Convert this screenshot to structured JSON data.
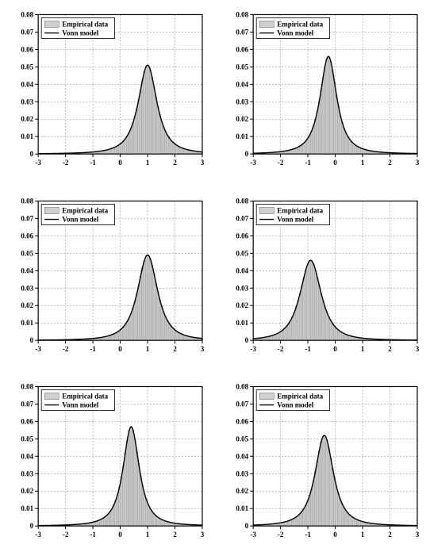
{
  "legend": {
    "empirical_label": "Empirical data",
    "model_label": "Vonn  model",
    "fill_color": "#d0d0d0",
    "line_color": "#000000",
    "font_size": 9,
    "font_family": "Times New Roman"
  },
  "axes": {
    "xlim": [
      -3,
      3
    ],
    "ylim": [
      0,
      0.08
    ],
    "xticks": [
      -3,
      -2,
      -1,
      0,
      1,
      2,
      3
    ],
    "yticks": [
      0,
      0.01,
      0.02,
      0.03,
      0.04,
      0.05,
      0.06,
      0.07,
      0.08
    ],
    "label_fontsize": 9,
    "grid_color": "#808080",
    "grid_dash": "2,2",
    "axis_color": "#000000",
    "background_color": "#ffffff",
    "border_width": 1.2
  },
  "bar_style": {
    "fill": "#c8c8c8",
    "stroke": "#909090",
    "stroke_width": 0.3,
    "bar_width": 0.07
  },
  "curve_style": {
    "stroke": "#000000",
    "stroke_width": 1.4
  },
  "panels": [
    {
      "mu": 1.0,
      "peak": 0.051,
      "width": 0.38,
      "tail": 1.6
    },
    {
      "mu": -0.25,
      "peak": 0.056,
      "width": 0.34,
      "tail": 1.6
    },
    {
      "mu": 1.0,
      "peak": 0.049,
      "width": 0.4,
      "tail": 1.8
    },
    {
      "mu": -0.9,
      "peak": 0.046,
      "width": 0.42,
      "tail": 1.9
    },
    {
      "mu": 0.4,
      "peak": 0.057,
      "width": 0.33,
      "tail": 1.6
    },
    {
      "mu": -0.4,
      "peak": 0.052,
      "width": 0.37,
      "tail": 1.7
    }
  ],
  "layout": {
    "figure_width": 542,
    "figure_height": 696,
    "rows": 3,
    "cols": 2
  }
}
